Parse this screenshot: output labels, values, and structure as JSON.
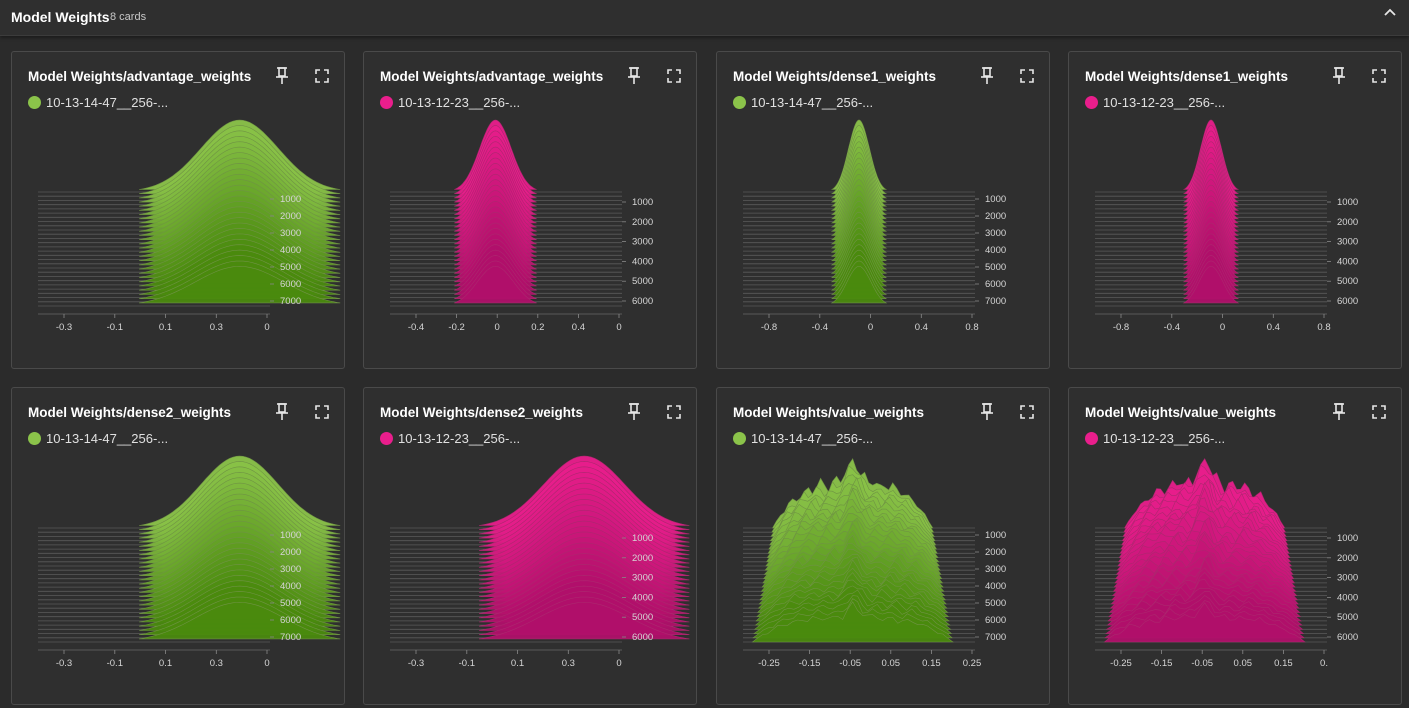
{
  "section": {
    "title": "Model Weights",
    "count": "8 cards"
  },
  "icons": {
    "collapse": "chevron-up-icon",
    "pin": "pin-icon",
    "fullscreen": "fullscreen-icon"
  },
  "chart_data": [
    {
      "type": "area",
      "title": "Model Weights/advantage_weights",
      "run": "10-13-14-47__256-...",
      "color": "#8bc34a",
      "colorDark": "#4a8a0e",
      "shape": "gauss",
      "sigma": 0.07,
      "center": -0.015,
      "xlim": [
        -0.38,
        0.04
      ],
      "xticks": [
        "-0.3",
        "-0.1",
        "0.1",
        "0.3",
        "0"
      ],
      "yticks": [
        "1000",
        "2000",
        "3000",
        "4000",
        "5000",
        "6000",
        "7000"
      ]
    },
    {
      "type": "area",
      "title": "Model Weights/advantage_weights",
      "run": "10-13-12-23__256-...",
      "color": "#e91e8c",
      "colorDark": "#b0106a",
      "shape": "gauss",
      "sigma": 0.075,
      "center": 0.0,
      "xlim": [
        -0.5,
        0.6
      ],
      "xticks": [
        "-0.4",
        "-0.2",
        "0",
        "0.2",
        "0.4",
        "0"
      ],
      "yticks": [
        "1000",
        "2000",
        "3000",
        "4000",
        "5000",
        "6000"
      ]
    },
    {
      "type": "area",
      "title": "Model Weights/dense1_weights",
      "run": "10-13-14-47__256-...",
      "color": "#8bc34a",
      "colorDark": "#4a8a0e",
      "shape": "gauss",
      "sigma": 0.09,
      "center": 0.0,
      "xlim": [
        -1.0,
        1.0
      ],
      "xticks": [
        "-0.8",
        "-0.4",
        "0",
        "0.4",
        "0.8"
      ],
      "yticks": [
        "1000",
        "2000",
        "3000",
        "4000",
        "5000",
        "6000",
        "7000"
      ]
    },
    {
      "type": "area",
      "title": "Model Weights/dense1_weights",
      "run": "10-13-12-23__256-...",
      "color": "#e91e8c",
      "colorDark": "#b0106a",
      "shape": "gauss",
      "sigma": 0.09,
      "center": 0.0,
      "xlim": [
        -1.0,
        1.0
      ],
      "xticks": [
        "-0.8",
        "-0.4",
        "0",
        "0.4",
        "0.8"
      ],
      "yticks": [
        "1000",
        "2000",
        "3000",
        "4000",
        "5000",
        "6000"
      ]
    },
    {
      "type": "area",
      "title": "Model Weights/dense2_weights",
      "run": "10-13-14-47__256-...",
      "color": "#8bc34a",
      "colorDark": "#4a8a0e",
      "shape": "gauss",
      "sigma": 0.07,
      "center": -0.015,
      "xlim": [
        -0.38,
        0.04
      ],
      "xticks": [
        "-0.3",
        "-0.1",
        "0.1",
        "0.3",
        "0"
      ],
      "yticks": [
        "1000",
        "2000",
        "3000",
        "4000",
        "5000",
        "6000",
        "7000"
      ]
    },
    {
      "type": "area",
      "title": "Model Weights/dense2_weights",
      "run": "10-13-12-23__256-...",
      "color": "#e91e8c",
      "colorDark": "#b0106a",
      "shape": "gauss",
      "sigma": 0.075,
      "center": -0.02,
      "xlim": [
        -0.38,
        0.05
      ],
      "xticks": [
        "-0.3",
        "-0.1",
        "0.1",
        "0.3",
        "0"
      ],
      "yticks": [
        "1000",
        "2000",
        "3000",
        "4000",
        "5000",
        "6000"
      ]
    },
    {
      "type": "area",
      "title": "Model Weights/value_weights",
      "run": "10-13-14-47__256-...",
      "color": "#8bc34a",
      "colorDark": "#4a8a0e",
      "shape": "noisy",
      "sigma": 0.2,
      "center": -0.02,
      "xlim": [
        -0.28,
        0.27
      ],
      "xticks": [
        "-0.25",
        "-0.15",
        "-0.05",
        "0.05",
        "0.15",
        "0.25"
      ],
      "yticks": [
        "1000",
        "2000",
        "3000",
        "4000",
        "5000",
        "6000",
        "7000"
      ]
    },
    {
      "type": "area",
      "title": "Model Weights/value_weights",
      "run": "10-13-12-23__256-...",
      "color": "#e91e8c",
      "colorDark": "#b0106a",
      "shape": "noisy",
      "sigma": 0.2,
      "center": -0.02,
      "xlim": [
        -0.28,
        0.27
      ],
      "xticks": [
        "-0.25",
        "-0.15",
        "-0.05",
        "0.05",
        "0.15",
        "0."
      ],
      "yticks": [
        "1000",
        "2000",
        "3000",
        "4000",
        "5000",
        "6000"
      ]
    }
  ]
}
